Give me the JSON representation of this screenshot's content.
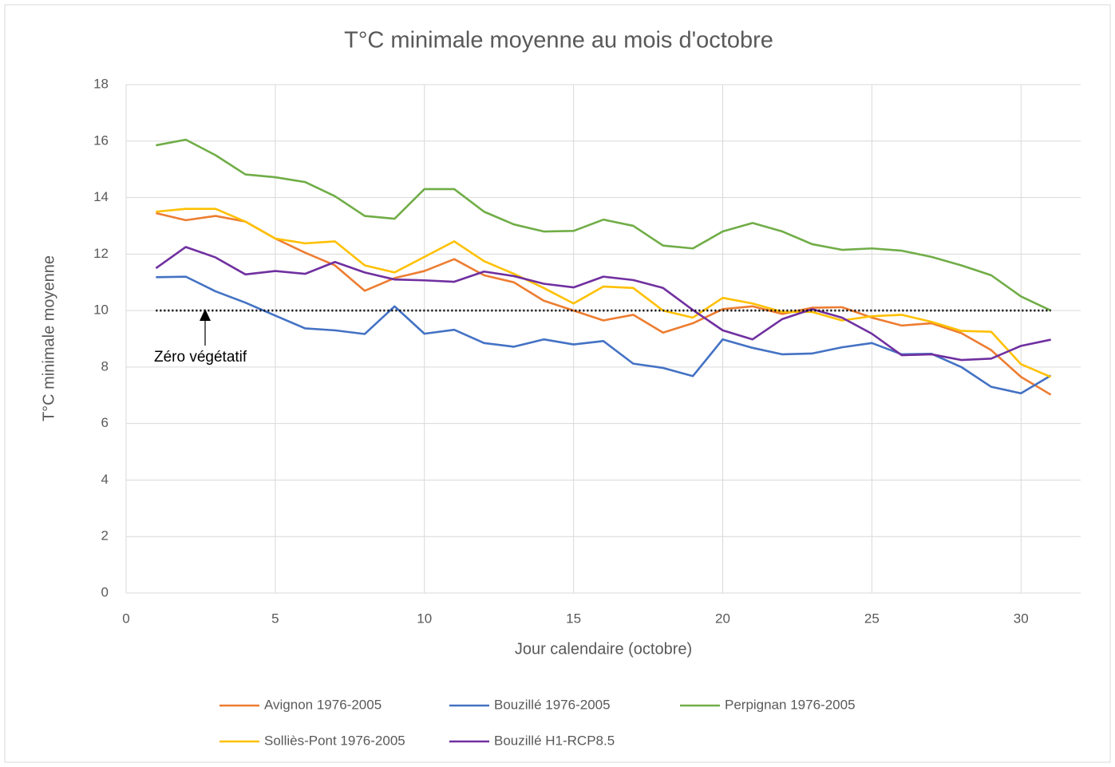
{
  "chart_data": {
    "type": "line",
    "title": "T°C minimale moyenne au mois d'octobre",
    "x_label": "Jour calendaire (octobre)",
    "y_label": "T°C minimale moyenne",
    "x": [
      1,
      2,
      3,
      4,
      5,
      6,
      7,
      8,
      9,
      10,
      11,
      12,
      13,
      14,
      15,
      16,
      17,
      18,
      19,
      20,
      21,
      22,
      23,
      24,
      25,
      26,
      27,
      28,
      29,
      30,
      31
    ],
    "series": [
      {
        "name": "Avignon 1976-2005",
        "color": "#ed7d31",
        "values": [
          13.45,
          13.2,
          13.35,
          13.15,
          12.55,
          12.05,
          11.6,
          10.7,
          11.15,
          11.4,
          11.82,
          11.25,
          11.0,
          10.35,
          10.0,
          9.65,
          9.85,
          9.22,
          9.55,
          10.05,
          10.15,
          9.88,
          10.1,
          10.12,
          9.75,
          9.47,
          9.55,
          9.2,
          8.6,
          7.65,
          7.02
        ]
      },
      {
        "name": "Bouzillé 1976-2005",
        "color": "#4472c4",
        "values": [
          11.18,
          11.2,
          10.68,
          10.28,
          9.82,
          9.37,
          9.3,
          9.17,
          10.15,
          9.18,
          9.32,
          8.85,
          8.72,
          8.98,
          8.8,
          8.92,
          8.12,
          7.97,
          7.68,
          8.98,
          8.68,
          8.45,
          8.48,
          8.7,
          8.85,
          8.45,
          8.47,
          8.0,
          7.3,
          7.07,
          7.7
        ]
      },
      {
        "name": "Perpignan 1976-2005",
        "color": "#70ad47",
        "values": [
          15.85,
          16.05,
          15.5,
          14.82,
          14.72,
          14.55,
          14.05,
          13.35,
          13.25,
          14.3,
          14.3,
          13.5,
          13.05,
          12.8,
          12.82,
          13.22,
          13.0,
          12.3,
          12.2,
          12.8,
          13.1,
          12.8,
          12.35,
          12.15,
          12.2,
          12.12,
          11.9,
          11.6,
          11.25,
          10.5,
          10.0
        ]
      },
      {
        "name": "Solliès-Pont 1976-2005",
        "color": "#ffc000",
        "values": [
          13.5,
          13.6,
          13.6,
          13.15,
          12.55,
          12.38,
          12.45,
          11.6,
          11.35,
          11.9,
          12.45,
          11.75,
          11.3,
          10.8,
          10.25,
          10.85,
          10.8,
          10.0,
          9.75,
          10.45,
          10.25,
          9.95,
          9.95,
          9.65,
          9.8,
          9.85,
          9.6,
          9.28,
          9.25,
          8.1,
          7.65
        ]
      },
      {
        "name": "Bouzillé H1-RCP8.5",
        "color": "#7030a0",
        "values": [
          11.5,
          12.25,
          11.88,
          11.28,
          11.4,
          11.3,
          11.72,
          11.35,
          11.1,
          11.07,
          11.02,
          11.38,
          11.22,
          10.95,
          10.82,
          11.2,
          11.08,
          10.8,
          10.02,
          9.3,
          8.98,
          9.7,
          10.05,
          9.75,
          9.18,
          8.42,
          8.45,
          8.25,
          8.3,
          8.75,
          8.97
        ]
      }
    ],
    "reference_line": {
      "value": 10,
      "label": "Zéro végétatif",
      "color": "#000000"
    },
    "xlim": [
      0,
      32
    ],
    "xticks": [
      0,
      5,
      10,
      15,
      20,
      25,
      30
    ],
    "ylim": [
      0,
      18
    ],
    "yticks": [
      0,
      2,
      4,
      6,
      8,
      10,
      12,
      14,
      16,
      18
    ],
    "grid": true
  }
}
